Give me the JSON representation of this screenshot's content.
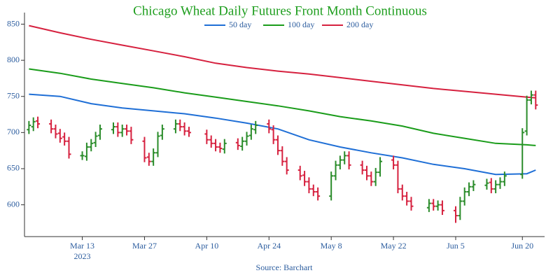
{
  "chart_data": {
    "type": "ohlc",
    "title": "Chicago Wheat Daily Futures Front Month Continuous",
    "source": "Source: Barchart",
    "legend": "top",
    "up_color": "#2a8c2a",
    "down_color": "#d6213f",
    "x": [
      "2023-03-01",
      "2023-03-02",
      "2023-03-03",
      "2023-03-06",
      "2023-03-07",
      "2023-03-08",
      "2023-03-09",
      "2023-03-10",
      "2023-03-13",
      "2023-03-14",
      "2023-03-15",
      "2023-03-16",
      "2023-03-17",
      "2023-03-20",
      "2023-03-21",
      "2023-03-22",
      "2023-03-23",
      "2023-03-24",
      "2023-03-27",
      "2023-03-28",
      "2023-03-29",
      "2023-03-30",
      "2023-03-31",
      "2023-04-03",
      "2023-04-04",
      "2023-04-05",
      "2023-04-06",
      "2023-04-10",
      "2023-04-11",
      "2023-04-12",
      "2023-04-13",
      "2023-04-14",
      "2023-04-17",
      "2023-04-18",
      "2023-04-19",
      "2023-04-20",
      "2023-04-21",
      "2023-04-24",
      "2023-04-25",
      "2023-04-26",
      "2023-04-27",
      "2023-04-28",
      "2023-05-01",
      "2023-05-02",
      "2023-05-03",
      "2023-05-04",
      "2023-05-05",
      "2023-05-08",
      "2023-05-09",
      "2023-05-10",
      "2023-05-11",
      "2023-05-12",
      "2023-05-15",
      "2023-05-16",
      "2023-05-17",
      "2023-05-18",
      "2023-05-19",
      "2023-05-22",
      "2023-05-23",
      "2023-05-24",
      "2023-05-25",
      "2023-05-26",
      "2023-05-30",
      "2023-05-31",
      "2023-06-01",
      "2023-06-02",
      "2023-06-05",
      "2023-06-06",
      "2023-06-07",
      "2023-06-08",
      "2023-06-09",
      "2023-06-12",
      "2023-06-13",
      "2023-06-14",
      "2023-06-15",
      "2023-06-16",
      "2023-06-20",
      "2023-06-21",
      "2023-06-22",
      "2023-06-23"
    ],
    "open": [
      704,
      708,
      716,
      712,
      705,
      699,
      694,
      688,
      668,
      667,
      680,
      686,
      696,
      704,
      708,
      700,
      705,
      702,
      688,
      666,
      660,
      672,
      696,
      705,
      712,
      708,
      702,
      698,
      690,
      685,
      680,
      677,
      686,
      681,
      688,
      696,
      704,
      712,
      704,
      690,
      675,
      660,
      648,
      641,
      632,
      622,
      618,
      612,
      640,
      655,
      662,
      668,
      655,
      648,
      640,
      632,
      645,
      662,
      655,
      622,
      612,
      605,
      596,
      602,
      598,
      600,
      592,
      585,
      605,
      618,
      625,
      627,
      631,
      622,
      628,
      632,
      642,
      702,
      745,
      752
    ],
    "high": [
      716,
      721,
      722,
      718,
      711,
      705,
      700,
      694,
      674,
      686,
      691,
      701,
      711,
      714,
      714,
      711,
      711,
      708,
      694,
      672,
      678,
      701,
      711,
      718,
      718,
      714,
      708,
      704,
      696,
      691,
      686,
      691,
      692,
      694,
      701,
      711,
      716,
      718,
      710,
      696,
      681,
      666,
      654,
      647,
      638,
      628,
      624,
      646,
      661,
      668,
      674,
      674,
      661,
      654,
      646,
      651,
      666,
      668,
      661,
      628,
      618,
      611,
      608,
      608,
      606,
      606,
      598,
      611,
      624,
      631,
      634,
      636,
      637,
      634,
      638,
      646,
      706,
      751,
      758,
      758
    ],
    "low": [
      698,
      702,
      706,
      699,
      692,
      686,
      682,
      664,
      662,
      661,
      674,
      680,
      690,
      698,
      694,
      694,
      696,
      684,
      659,
      654,
      654,
      666,
      690,
      699,
      702,
      696,
      694,
      684,
      679,
      674,
      672,
      671,
      676,
      675,
      682,
      690,
      698,
      699,
      684,
      669,
      654,
      642,
      634,
      626,
      616,
      612,
      606,
      606,
      634,
      649,
      656,
      649,
      642,
      634,
      626,
      626,
      639,
      649,
      616,
      606,
      599,
      592,
      590,
      592,
      592,
      586,
      575,
      579,
      599,
      612,
      619,
      621,
      616,
      616,
      622,
      626,
      636,
      696,
      739,
      732
    ],
    "close": [
      710,
      715,
      712,
      705,
      698,
      692,
      688,
      670,
      668,
      680,
      685,
      695,
      705,
      708,
      700,
      705,
      702,
      690,
      665,
      660,
      672,
      695,
      705,
      712,
      708,
      702,
      700,
      690,
      685,
      680,
      678,
      685,
      682,
      688,
      695,
      705,
      710,
      705,
      690,
      675,
      660,
      648,
      640,
      632,
      622,
      618,
      612,
      640,
      655,
      662,
      668,
      655,
      648,
      640,
      632,
      645,
      660,
      655,
      622,
      612,
      605,
      598,
      602,
      598,
      600,
      592,
      585,
      605,
      618,
      625,
      628,
      630,
      622,
      628,
      632,
      640,
      700,
      745,
      752,
      738
    ],
    "series": [
      {
        "name": "50 day",
        "color": "#1f6fd6",
        "x": [
          "2023-03-01",
          "2023-03-08",
          "2023-03-15",
          "2023-03-22",
          "2023-03-29",
          "2023-04-05",
          "2023-04-12",
          "2023-04-19",
          "2023-04-26",
          "2023-05-03",
          "2023-05-10",
          "2023-05-17",
          "2023-05-24",
          "2023-05-31",
          "2023-06-07",
          "2023-06-14",
          "2023-06-21",
          "2023-06-23"
        ],
        "values": [
          753,
          750,
          740,
          734,
          730,
          726,
          720,
          713,
          705,
          690,
          680,
          672,
          665,
          656,
          650,
          642,
          643,
          648
        ]
      },
      {
        "name": "100 day",
        "color": "#1a9c1a",
        "x": [
          "2023-03-01",
          "2023-03-08",
          "2023-03-15",
          "2023-03-22",
          "2023-03-29",
          "2023-04-05",
          "2023-04-12",
          "2023-04-19",
          "2023-04-26",
          "2023-05-03",
          "2023-05-10",
          "2023-05-17",
          "2023-05-24",
          "2023-05-31",
          "2023-06-07",
          "2023-06-14",
          "2023-06-21",
          "2023-06-23"
        ],
        "values": [
          788,
          782,
          774,
          768,
          762,
          755,
          749,
          743,
          737,
          730,
          722,
          716,
          709,
          699,
          692,
          685,
          683,
          682
        ]
      },
      {
        "name": "200 day",
        "color": "#d6213f",
        "x": [
          "2023-03-01",
          "2023-03-08",
          "2023-03-15",
          "2023-03-22",
          "2023-03-29",
          "2023-04-05",
          "2023-04-12",
          "2023-04-19",
          "2023-04-26",
          "2023-05-03",
          "2023-05-10",
          "2023-05-17",
          "2023-05-24",
          "2023-05-31",
          "2023-06-07",
          "2023-06-14",
          "2023-06-21",
          "2023-06-23"
        ],
        "values": [
          848,
          838,
          829,
          821,
          813,
          805,
          796,
          790,
          785,
          781,
          776,
          771,
          766,
          761,
          757,
          753,
          749,
          748
        ]
      }
    ],
    "xlim": [
      "2023-02-28",
      "2023-06-25"
    ],
    "xticks": [
      {
        "value": "2023-03-13",
        "label": "Mar 13"
      },
      {
        "value": "2023-03-27",
        "label": "Mar 27"
      },
      {
        "value": "2023-04-10",
        "label": "Apr 10"
      },
      {
        "value": "2023-04-24",
        "label": "Apr 24"
      },
      {
        "value": "2023-05-08",
        "label": "May 8"
      },
      {
        "value": "2023-05-22",
        "label": "May 22"
      },
      {
        "value": "2023-06-05",
        "label": "Jun 5"
      },
      {
        "value": "2023-06-20",
        "label": "Jun 20"
      }
    ],
    "xtick_year": "2023",
    "ylim": [
      556,
      866
    ],
    "yticks": [
      600,
      650,
      700,
      750,
      800,
      850
    ]
  }
}
